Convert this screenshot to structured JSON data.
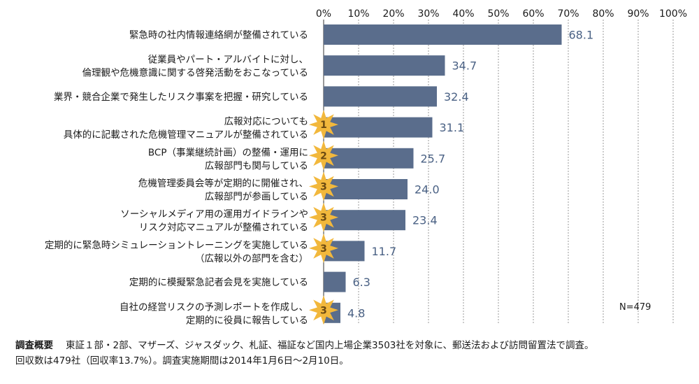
{
  "chart_data": {
    "type": "bar",
    "orientation": "horizontal",
    "xlim": [
      0,
      100
    ],
    "tick_labels": [
      "0%",
      "10%",
      "20%",
      "30%",
      "40%",
      "50%",
      "60%",
      "70%",
      "80%",
      "90%",
      "100%"
    ],
    "grid": true,
    "bar_color": "#5a6d8c",
    "value_color": "#4a6184",
    "badge_color": "#f2b83c",
    "n_label": "N=479",
    "categories": [
      {
        "lines": [
          "緊急時の社内情報連絡網が整備されている"
        ],
        "value": 68.1,
        "value_label": "68.1",
        "rank": ""
      },
      {
        "lines": [
          "従業員やパート・アルバイトに対し、",
          "倫理観や危機意識に関する啓発活動をおこなっている"
        ],
        "value": 34.7,
        "value_label": "34.7",
        "rank": ""
      },
      {
        "lines": [
          "業界・競合企業で発生したリスク事案を把握・研究している"
        ],
        "value": 32.4,
        "value_label": "32.4",
        "rank": ""
      },
      {
        "lines": [
          "広報対応についても",
          "具体的に記載された危機管理マニュアルが整備されている"
        ],
        "value": 31.1,
        "value_label": "31.1",
        "rank": "1"
      },
      {
        "lines": [
          "BCP（事業継続計画）の整備・運用に",
          "広報部門も関与している"
        ],
        "value": 25.7,
        "value_label": "25.7",
        "rank": "2"
      },
      {
        "lines": [
          "危機管理委員会等が定期的に開催され、",
          "広報部門が参画している"
        ],
        "value": 24.0,
        "value_label": "24.0",
        "rank": "3"
      },
      {
        "lines": [
          "ソーシャルメディア用の運用ガイドラインや",
          "リスク対応マニュアルが整備されている"
        ],
        "value": 23.4,
        "value_label": "23.4",
        "rank": "3"
      },
      {
        "lines": [
          "定期的に緊急時シミュレーショントレーニングを実施している",
          "（広報以外の部門を含む）"
        ],
        "value": 11.7,
        "value_label": "11.7",
        "rank": "3"
      },
      {
        "lines": [
          "定期的に模擬緊急記者会見を実施している"
        ],
        "value": 6.3,
        "value_label": "6.3",
        "rank": ""
      },
      {
        "lines": [
          "自社の経営リスクの予測レポートを作成し、",
          "定期的に役員に報告している"
        ],
        "value": 4.8,
        "value_label": "4.8",
        "rank": "3"
      }
    ]
  },
  "footer": {
    "label": "調査概要",
    "line1": "東証１部・2部、マザーズ、ジャスダック、札証、福証など国内上場企業3503社を対象に、郵送法および訪問留置法で調査。",
    "line2": "回収数は479社（回収率13.7%）。調査実施期間は2014年1月6日〜2月10日。"
  }
}
